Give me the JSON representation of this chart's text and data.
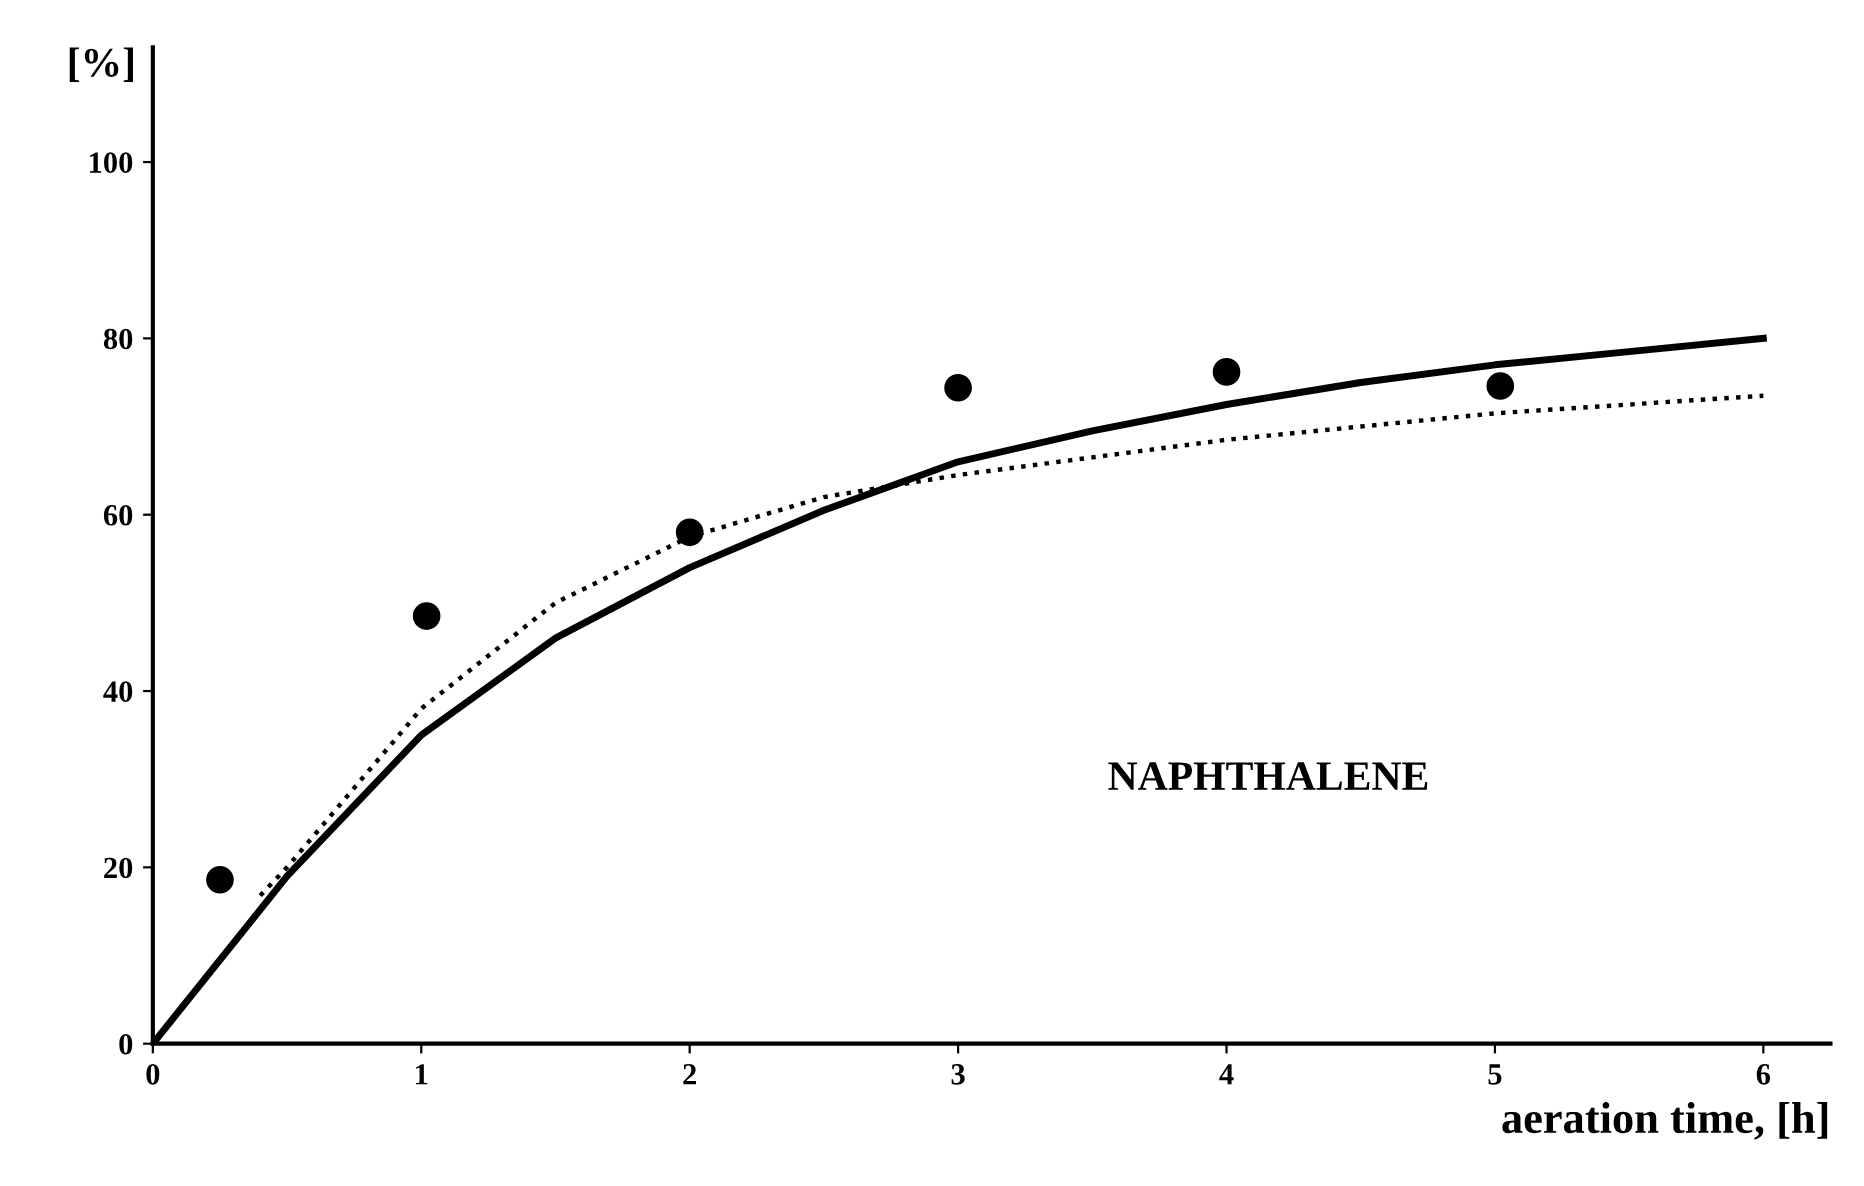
{
  "chart_data": {
    "type": "scatter",
    "xlabel": "aeration time, [h]",
    "ylabel": "[%]",
    "xlim": [
      0,
      6.25
    ],
    "ylim": [
      0,
      113
    ],
    "xticks": [
      0,
      1,
      2,
      3,
      4,
      5,
      6
    ],
    "yticks": [
      0,
      20,
      40,
      60,
      80,
      100
    ],
    "grid": false,
    "annotations": [
      "NAPHTHALENE"
    ],
    "series": [
      {
        "color": "#000000",
        "marker": "circle",
        "x": [
          0.25,
          1.02,
          2.0,
          3.0,
          4.0,
          5.02
        ],
        "values": [
          18.6,
          48.5,
          58,
          74.4,
          76.2,
          74.6
        ]
      },
      {
        "type": "line",
        "color": "#000000",
        "line_style": "solid",
        "x": [
          0,
          0.5,
          1,
          1.5,
          2,
          2.5,
          3,
          3.5,
          4,
          4.5,
          5,
          5.5,
          6
        ],
        "values": [
          0,
          19,
          35,
          46,
          54,
          60.5,
          66,
          69.5,
          72.5,
          75,
          77,
          78.5,
          80
        ]
      },
      {
        "type": "line",
        "color": "#000000",
        "line_style": "dotted",
        "x": [
          0.4,
          0.5,
          1,
          1.5,
          2,
          2.5,
          3,
          3.5,
          4,
          4.5,
          5,
          5.5,
          6
        ],
        "values": [
          16.8,
          20,
          38,
          50,
          57.5,
          62,
          64.5,
          66.5,
          68.5,
          70,
          71.5,
          72.5,
          73.5
        ]
      }
    ]
  }
}
